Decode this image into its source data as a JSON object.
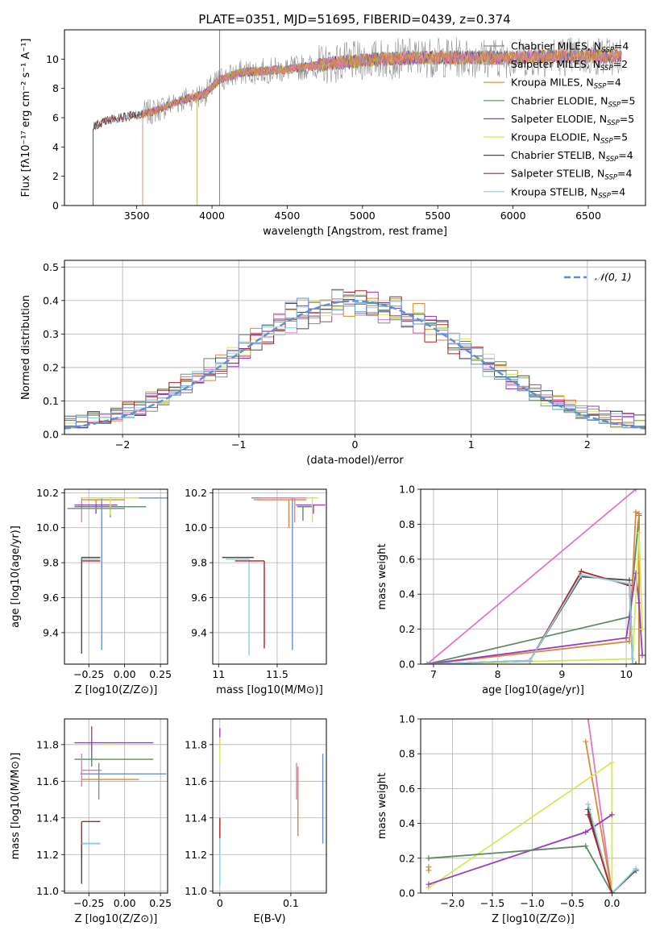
{
  "figure": {
    "title": "PLATE=0351, MJD=51695, FIBERID=0439, z=0.374"
  },
  "colors": {
    "Chabrier MILES": "#8c8c8c",
    "Salpeter MILES": "#e377c2",
    "Kroupa MILES": "#d98a3a",
    "Chabrier ELODIE": "#5e8a63",
    "Salpeter ELODIE": "#9a3bbf",
    "Kroupa ELODIE": "#d4e85a",
    "Chabrier STELIB": "#4a4a4a",
    "Salpeter STELIB": "#b22222",
    "Kroupa STELIB": "#8ccfe0",
    "extra": "#6a8fd6",
    "normal": "#5b8fd6"
  },
  "chart_data": [
    {
      "type": "line",
      "panel": "spectrum",
      "title": "PLATE=0351, MJD=51695, FIBERID=0439, z=0.374",
      "xlabel": "wavelength [Angstrom, rest frame]",
      "ylabel": "Flux [fλ10⁻¹⁷ erg cm⁻² s⁻¹ A⁻¹]",
      "xlim": [
        3020,
        6880
      ],
      "ylim": [
        0,
        12
      ],
      "xticks": [
        3500,
        4000,
        4500,
        5000,
        5500,
        6000,
        6500
      ],
      "yticks": [
        0,
        2,
        4,
        6,
        8,
        10
      ],
      "legend_loc": "right",
      "continuum": [
        [
          3210,
          5.4
        ],
        [
          3300,
          5.8
        ],
        [
          3450,
          6.1
        ],
        [
          3600,
          6.4
        ],
        [
          3800,
          7.2
        ],
        [
          3950,
          7.6
        ],
        [
          4050,
          8.6
        ],
        [
          4200,
          9.1
        ],
        [
          4500,
          9.3
        ],
        [
          4800,
          9.7
        ],
        [
          5100,
          10.0
        ],
        [
          5400,
          10.1
        ],
        [
          5700,
          10.1
        ],
        [
          6000,
          10.1
        ],
        [
          6300,
          10.2
        ],
        [
          6600,
          10.2
        ],
        [
          6720,
          10.2
        ]
      ],
      "series": [
        {
          "name": "Chabrier MILES, N_SSP=4",
          "start": 3540
        },
        {
          "name": "Salpeter MILES, N_SSP=2",
          "start": 3540
        },
        {
          "name": "Kroupa MILES, N_SSP=4",
          "start": 3540
        },
        {
          "name": "Chabrier ELODIE, N_SSP=5",
          "start": 3900
        },
        {
          "name": "Salpeter ELODIE, N_SSP=5",
          "start": 3900
        },
        {
          "name": "Kroupa ELODIE, N_SSP=5",
          "start": 3900
        },
        {
          "name": "Chabrier STELIB, N_SSP=4",
          "start": 3210
        },
        {
          "name": "Salpeter STELIB, N_SSP=4",
          "start": 3210
        },
        {
          "name": "Kroupa STELIB, N_SSP=4",
          "start": 3210
        }
      ]
    },
    {
      "type": "histogram",
      "panel": "residuals",
      "xlabel": "(data-model)/error",
      "ylabel": "Normed distribution",
      "xlim": [
        -2.5,
        2.5
      ],
      "ylim": [
        0,
        0.52
      ],
      "xticks": [
        -2,
        -1,
        0,
        1,
        2
      ],
      "yticks": [
        0.0,
        0.1,
        0.2,
        0.3,
        0.4,
        0.5
      ],
      "bin_width": 0.1,
      "legend": [
        {
          "label": "𝒩(0, 1)",
          "style": "dashed"
        }
      ],
      "legend_loc": "upper right",
      "grid": true
    },
    {
      "type": "errorbar",
      "panel": "age-vs-Z",
      "xlabel": "Z [log10(Z/Z⊙)]",
      "ylabel": "age  [log10(age/yr)]",
      "xlim": [
        -0.42,
        0.3
      ],
      "ylim": [
        9.22,
        10.22
      ],
      "xticks": [
        -0.25,
        0.0,
        0.25
      ],
      "xticklabels": [
        "−0.25",
        "0.00",
        "0.25"
      ],
      "yticks": [
        9.4,
        9.6,
        9.8,
        10.0,
        10.2
      ],
      "points": [
        {
          "c": "Chabrier STELIB",
          "x": -0.3,
          "y": 9.83,
          "xe": [
            0.0,
            0.13
          ],
          "ye": [
            0.55,
            0.0
          ]
        },
        {
          "c": "Kroupa STELIB",
          "x": -0.3,
          "y": 9.82,
          "xe": [
            0.0,
            0.13
          ],
          "ye": [
            0.0,
            0.0
          ]
        },
        {
          "c": "Salpeter STELIB",
          "x": -0.3,
          "y": 9.81,
          "xe": [
            0.0,
            0.13
          ],
          "ye": [
            0.0,
            0.0
          ]
        },
        {
          "c": "extra",
          "x": -0.16,
          "y": 10.17,
          "xe": [
            0.0,
            0.46
          ],
          "ye": [
            0.87,
            0.0
          ]
        },
        {
          "c": "Salpeter MILES",
          "x": -0.3,
          "y": 10.17,
          "xe": [
            0.0,
            0.35
          ],
          "ye": [
            0.14,
            0.0
          ]
        },
        {
          "c": "Kroupa MILES",
          "x": -0.2,
          "y": 10.16,
          "xe": [
            0.1,
            0.2
          ],
          "ye": [
            0.04,
            0.0
          ]
        },
        {
          "c": "Salpeter ELODIE",
          "x": -0.2,
          "y": 10.13,
          "xe": [
            0.15,
            0.15
          ],
          "ye": [
            0.05,
            0.0
          ]
        },
        {
          "c": "Chabrier ELODIE",
          "x": -0.1,
          "y": 10.12,
          "xe": [
            0.25,
            0.25
          ],
          "ye": [
            0.06,
            0.0
          ]
        },
        {
          "c": "Kroupa ELODIE",
          "x": -0.1,
          "y": 10.17,
          "xe": [
            0.2,
            0.2
          ],
          "ye": [
            0.1,
            0.0
          ]
        },
        {
          "c": "Chabrier MILES",
          "x": -0.2,
          "y": 10.11,
          "xe": [
            0.2,
            0.2
          ],
          "ye": [
            0.0,
            0.0
          ]
        }
      ]
    },
    {
      "type": "errorbar",
      "panel": "age-vs-mass",
      "xlabel": "mass [log10(M/M⊙)]",
      "ylabel": "",
      "xlim": [
        10.95,
        11.92
      ],
      "ylim": [
        9.22,
        10.22
      ],
      "xticks": [
        11.0,
        11.5
      ],
      "yticks": [
        9.4,
        9.6,
        9.8,
        10.0,
        10.2
      ],
      "points": [
        {
          "c": "Chabrier STELIB",
          "x": 11.03,
          "y": 9.83,
          "xe": [
            0.0,
            0.27
          ],
          "ye": [
            0.0,
            0.0
          ]
        },
        {
          "c": "Kroupa STELIB",
          "x": 11.26,
          "y": 9.82,
          "xe": [
            0.2,
            0.0
          ],
          "ye": [
            0.55,
            0.0
          ]
        },
        {
          "c": "Salpeter STELIB",
          "x": 11.39,
          "y": 9.81,
          "xe": [
            0.25,
            0.0
          ],
          "ye": [
            0.5,
            0.0
          ]
        },
        {
          "c": "extra",
          "x": 11.63,
          "y": 10.17,
          "xe": [
            0.35,
            0.0
          ],
          "ye": [
            0.87,
            0.0
          ]
        },
        {
          "c": "Salpeter MILES",
          "x": 11.65,
          "y": 10.17,
          "xe": [
            0.3,
            0.15
          ],
          "ye": [
            0.14,
            0.0
          ]
        },
        {
          "c": "Kroupa MILES",
          "x": 11.6,
          "y": 10.16,
          "xe": [
            0.3,
            0.15
          ],
          "ye": [
            0.16,
            0.0
          ]
        },
        {
          "c": "Salpeter ELODIE",
          "x": 11.81,
          "y": 10.13,
          "xe": [
            0.15,
            0.1
          ],
          "ye": [
            0.05,
            0.0
          ]
        },
        {
          "c": "Chabrier ELODIE",
          "x": 11.72,
          "y": 10.12,
          "xe": [
            0.05,
            0.08
          ],
          "ye": [
            0.08,
            0.0
          ]
        },
        {
          "c": "Kroupa ELODIE",
          "x": 11.8,
          "y": 10.17,
          "xe": [
            0.05,
            0.05
          ],
          "ye": [
            0.14,
            0.0
          ]
        }
      ]
    },
    {
      "type": "line",
      "panel": "mass-weight-vs-age",
      "xlabel": "age  [log10(age/yr)]",
      "ylabel": "mass weight",
      "xlim": [
        6.8,
        10.3
      ],
      "ylim": [
        0,
        1
      ],
      "xticks": [
        7,
        8,
        9,
        10
      ],
      "yticks": [
        0.0,
        0.2,
        0.4,
        0.6,
        0.8,
        1.0
      ],
      "series": [
        {
          "c": "Salpeter MILES",
          "x": [
            6.9,
            10.15
          ],
          "y": [
            0.0,
            1.0
          ]
        },
        {
          "c": "Chabrier ELODIE",
          "x": [
            6.9,
            10.05,
            10.2,
            10.2
          ],
          "y": [
            0.0,
            0.27,
            0.85,
            0.0
          ]
        },
        {
          "c": "Kroupa MILES",
          "x": [
            6.9,
            10.05,
            10.15,
            10.2,
            10.2
          ],
          "y": [
            0.0,
            0.13,
            0.87,
            0.86,
            0.0
          ]
        },
        {
          "c": "Salpeter ELODIE",
          "x": [
            6.9,
            10.0,
            10.15,
            10.2,
            10.25
          ],
          "y": [
            0.0,
            0.15,
            0.52,
            0.35,
            0.05
          ]
        },
        {
          "c": "Kroupa ELODIE",
          "x": [
            6.9,
            10.1,
            10.2,
            10.25
          ],
          "y": [
            0.0,
            0.03,
            0.75,
            0.2
          ]
        },
        {
          "c": "Chabrier STELIB",
          "x": [
            6.9,
            8.5,
            9.3,
            10.05,
            10.1,
            10.15
          ],
          "y": [
            0.0,
            0.02,
            0.5,
            0.48,
            0.0,
            0.0
          ]
        },
        {
          "c": "Salpeter STELIB",
          "x": [
            6.9,
            8.5,
            9.3,
            10.05,
            10.1
          ],
          "y": [
            0.0,
            0.02,
            0.53,
            0.45,
            0.0
          ]
        },
        {
          "c": "Kroupa STELIB",
          "x": [
            6.9,
            8.5,
            9.3,
            10.05,
            10.1
          ],
          "y": [
            0.0,
            0.02,
            0.51,
            0.46,
            0.0
          ]
        }
      ]
    },
    {
      "type": "errorbar",
      "panel": "mass-vs-Z",
      "xlabel": "Z [log10(Z/Z⊙)]",
      "ylabel": "mass [log10(M/M⊙)]",
      "xlim": [
        -0.42,
        0.3
      ],
      "ylim": [
        10.99,
        11.94
      ],
      "xticks": [
        -0.25,
        0.0,
        0.25
      ],
      "xticklabels": [
        "−0.25",
        "0.00",
        "0.25"
      ],
      "yticks": [
        11.0,
        11.2,
        11.4,
        11.6,
        11.8
      ],
      "points": [
        {
          "c": "Salpeter ELODIE",
          "x": -0.23,
          "y": 11.81,
          "xe": [
            0.12,
            0.43
          ],
          "ye": [
            0.09,
            0.09
          ]
        },
        {
          "c": "Chabrier ELODIE",
          "x": -0.23,
          "y": 11.72,
          "xe": [
            0.12,
            0.43
          ],
          "ye": [
            0.04,
            0.04
          ]
        },
        {
          "c": "Kroupa ELODIE",
          "x": -0.1,
          "y": 11.8,
          "xe": [
            0.05,
            0.05
          ],
          "ye": [
            0.0,
            0.0
          ]
        },
        {
          "c": "extra",
          "x": -0.16,
          "y": 11.64,
          "xe": [
            0.15,
            0.45
          ],
          "ye": [
            0.0,
            0.0
          ]
        },
        {
          "c": "Salpeter MILES",
          "x": -0.3,
          "y": 11.66,
          "xe": [
            0.0,
            0.14
          ],
          "ye": [
            0.09,
            0.09
          ]
        },
        {
          "c": "Kroupa MILES",
          "x": -0.3,
          "y": 11.61,
          "xe": [
            0.0,
            0.4
          ],
          "ye": [
            0.0,
            0.0
          ]
        },
        {
          "c": "Chabrier MILES",
          "x": -0.18,
          "y": 11.6,
          "xe": [
            0.0,
            0.0
          ],
          "ye": [
            0.1,
            0.1
          ]
        },
        {
          "c": "Salpeter STELIB",
          "x": -0.3,
          "y": 11.38,
          "xe": [
            0.0,
            0.13
          ],
          "ye": [
            0.2,
            0.0
          ]
        },
        {
          "c": "Chabrier STELIB",
          "x": -0.3,
          "y": 11.26,
          "xe": [
            0.0,
            0.13
          ],
          "ye": [
            0.22,
            0.0
          ]
        },
        {
          "c": "Kroupa STELIB",
          "x": -0.3,
          "y": 11.26,
          "xe": [
            0.0,
            0.13
          ],
          "ye": [
            0.0,
            0.0
          ]
        }
      ]
    },
    {
      "type": "errorbar",
      "panel": "mass-vs-EBV",
      "xlabel": "E(B-V)",
      "ylabel": "",
      "xlim": [
        -0.01,
        0.15
      ],
      "ylim": [
        10.99,
        11.94
      ],
      "xticks": [
        0.0,
        0.1
      ],
      "yticks": [
        11.0,
        11.2,
        11.4,
        11.6,
        11.8
      ],
      "points": [
        {
          "c": "Salpeter ELODIE",
          "x": 0.0,
          "y": 11.82,
          "xe": [
            0.0,
            0.0
          ],
          "ye": [
            0.04,
            0.07
          ]
        },
        {
          "c": "Kroupa ELODIE",
          "x": 0.0,
          "y": 11.77,
          "xe": [
            0.0,
            0.0
          ],
          "ye": [
            0.07,
            0.07
          ]
        },
        {
          "c": "Salpeter MILES",
          "x": 0.108,
          "y": 11.6,
          "xe": [
            0.0,
            0.0
          ],
          "ye": [
            0.1,
            0.1
          ]
        },
        {
          "c": "Kroupa MILES",
          "x": 0.11,
          "y": 11.5,
          "xe": [
            0.0,
            0.0
          ],
          "ye": [
            0.2,
            0.18
          ]
        },
        {
          "c": "extra",
          "x": 0.145,
          "y": 11.5,
          "xe": [
            0.0,
            0.0
          ],
          "ye": [
            0.24,
            0.25
          ]
        },
        {
          "c": "Salpeter STELIB",
          "x": 0.0,
          "y": 11.3,
          "xe": [
            0.0,
            0.0
          ],
          "ye": [
            0.1,
            0.1
          ]
        },
        {
          "c": "Kroupa STELIB",
          "x": 0.0,
          "y": 11.16,
          "xe": [
            0.0,
            0.0
          ],
          "ye": [
            0.13,
            0.13
          ]
        }
      ]
    },
    {
      "type": "line",
      "panel": "mass-weight-vs-Z",
      "xlabel": "Z [log10(Z/Z⊙)]",
      "ylabel": "mass weight",
      "xlim": [
        -2.4,
        0.42
      ],
      "ylim": [
        0,
        1
      ],
      "xticks": [
        -2.0,
        -1.5,
        -1.0,
        -0.5,
        0.0
      ],
      "xticklabels": [
        "−2.0",
        "−1.5",
        "−1.0",
        "−0.5",
        "0.0"
      ],
      "yticks": [
        0.0,
        0.2,
        0.4,
        0.6,
        0.8,
        1.0
      ],
      "series": [
        {
          "c": "Salpeter MILES",
          "x": [
            -0.3,
            0.0
          ],
          "y": [
            1.0,
            0.0
          ]
        },
        {
          "c": "Kroupa MILES",
          "x": [
            -0.33,
            0.0,
            0.3
          ],
          "y": [
            0.87,
            0.0,
            0.13
          ]
        },
        {
          "c": "Kroupa ELODIE",
          "x": [
            -2.3,
            0.0,
            0.0
          ],
          "y": [
            0.03,
            0.75,
            0.0
          ]
        },
        {
          "c": "Salpeter ELODIE",
          "x": [
            -2.3,
            -0.33,
            0.0
          ],
          "y": [
            0.05,
            0.35,
            0.45
          ]
        },
        {
          "c": "Chabrier ELODIE",
          "x": [
            -2.3,
            -0.33,
            0.0,
            0.3
          ],
          "y": [
            0.2,
            0.27,
            0.0,
            0.13
          ]
        },
        {
          "c": "Chabrier STELIB",
          "x": [
            -0.3,
            0.0,
            0.3
          ],
          "y": [
            0.48,
            0.0,
            0.13
          ]
        },
        {
          "c": "Kroupa STELIB",
          "x": [
            -0.3,
            0.0,
            0.3
          ],
          "y": [
            0.51,
            0.0,
            0.14
          ]
        },
        {
          "c": "Salpeter STELIB",
          "x": [
            -0.3,
            0.0
          ],
          "y": [
            0.45,
            0.0
          ]
        },
        {
          "c": "Kroupa MILES",
          "x": [
            -2.3,
            -2.3
          ],
          "y": [
            0.13,
            0.15
          ]
        }
      ]
    }
  ]
}
